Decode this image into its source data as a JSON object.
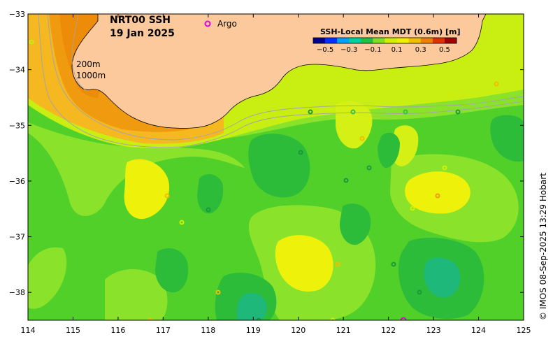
{
  "map": {
    "title_line1": "NRT00 SSH",
    "title_line2": "19 Jan 2025",
    "argo_label": "Argo",
    "argo_color": "#e000e0",
    "isobath_200": "200m",
    "isobath_1000": "1000m",
    "credit": "© IMOS 08-Sep-2025 13:29 Hobart",
    "land_color": "#fbc99b",
    "isobath_color": "#a6a6a6",
    "longitude_ticks": [
      "114",
      "115",
      "116",
      "117",
      "118",
      "119",
      "120",
      "121",
      "122",
      "123",
      "124",
      "125"
    ],
    "latitude_ticks": [
      "−33",
      "−34",
      "−35",
      "−36",
      "−37",
      "−38"
    ]
  },
  "legend": {
    "title": "SSH-Local Mean MDT (0.6m) [m]",
    "ticks": [
      "−0.5",
      "−0.3",
      "−0.1",
      "0.1",
      "0.3",
      "0.5"
    ],
    "range": [
      -0.6,
      0.6
    ],
    "colors": [
      "#00008f",
      "#0030ff",
      "#00a0ff",
      "#00d0a0",
      "#20c040",
      "#80e020",
      "#d0f000",
      "#f0f000",
      "#f0c000",
      "#f08000",
      "#e03000",
      "#a00000"
    ]
  },
  "chart_data": {
    "type": "heatmap",
    "title": "NRT00 SSH 19 Jan 2025",
    "xlabel": "",
    "ylabel": "",
    "xlim": [
      114,
      125
    ],
    "ylim": [
      -38.5,
      -33
    ],
    "value_range": [
      -0.6,
      0.6
    ],
    "units": "m",
    "levels": {
      "orange_shelf": 0.3,
      "light_orange": 0.2,
      "yellow": 0.15,
      "yellow_green": 0.1,
      "light_green": 0.05,
      "green": 0.0,
      "dark_green": -0.05,
      "teal": -0.1
    },
    "features": [
      {
        "name": "shelf high",
        "lon": [
          114.6,
          116.5
        ],
        "lat": [
          -33,
          -34.7
        ],
        "value": 0.3
      },
      {
        "name": "warm eddy",
        "lon": 120.4,
        "lat": -37.3,
        "value": 0.15
      },
      {
        "name": "warm eddy",
        "lon": 123.1,
        "lat": -36.3,
        "value": 0.15
      },
      {
        "name": "warm eddy",
        "lon": 116.8,
        "lat": -36.3,
        "value": 0.15
      },
      {
        "name": "cold eddy",
        "lon": 119.2,
        "lat": -38.2,
        "value": -0.1
      },
      {
        "name": "cold eddy",
        "lon": 123.2,
        "lat": -37.8,
        "value": -0.1
      }
    ]
  }
}
